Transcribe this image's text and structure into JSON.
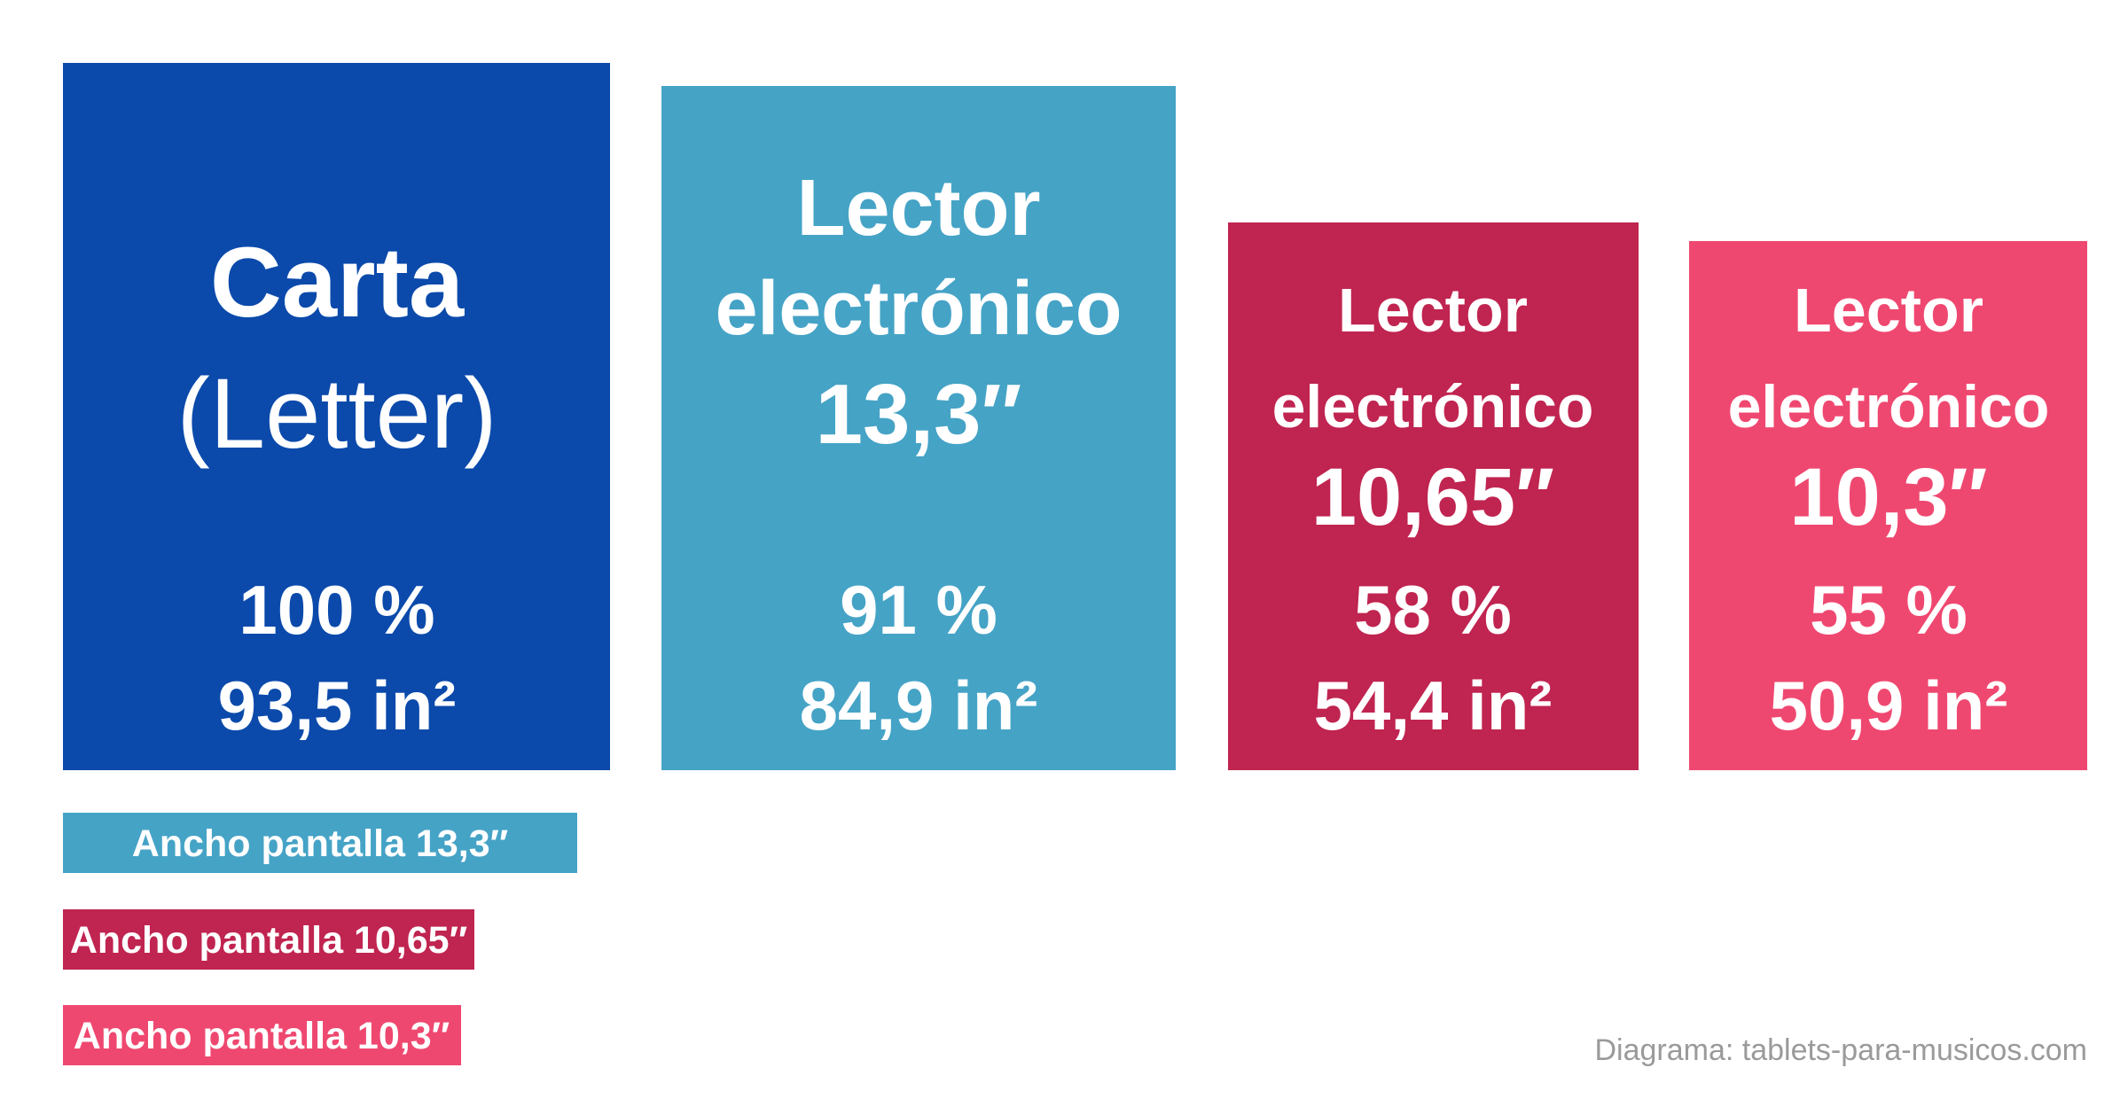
{
  "blocks": [
    {
      "title": [
        "Carta",
        "(Letter)"
      ],
      "percent": "100 %",
      "area": "93,5 in²"
    },
    {
      "title": [
        "Lector",
        "electrónico",
        "13,3″"
      ],
      "percent": "91 %",
      "area": "84,9 in²"
    },
    {
      "title": [
        "Lector",
        "electrónico",
        "10,65″"
      ],
      "percent": "58 %",
      "area": "54,4 in²"
    },
    {
      "title": [
        "Lector",
        "electrónico",
        "10,3″"
      ],
      "percent": "55 %",
      "area": "50,9 in²"
    }
  ],
  "width_bars": [
    "Ancho pantalla 13,3″",
    "Ancho pantalla 10,65″",
    "Ancho pantalla 10,3″"
  ],
  "credit": "Diagrama: tablets-para-musicos.com"
}
